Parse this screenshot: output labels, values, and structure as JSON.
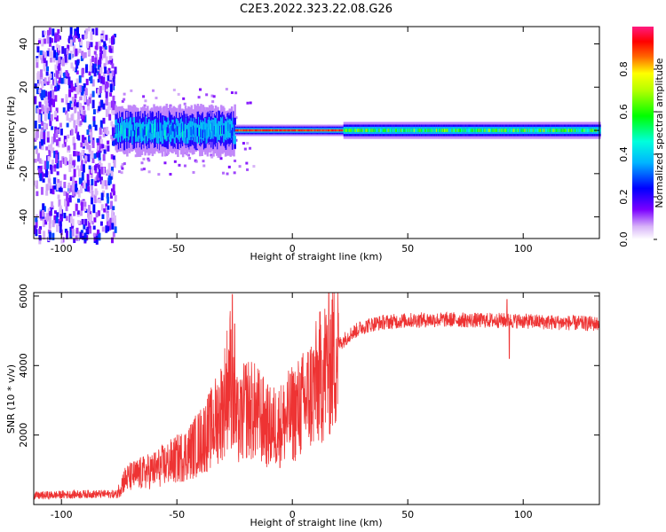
{
  "title": "C2E3.2022.323.22.08.G26",
  "chart_data": [
    {
      "type": "heatmap",
      "xlabel": "Height of straight line (km)",
      "ylabel": "Frequency (Hz)",
      "xlim": [
        -112,
        133
      ],
      "ylim": [
        -50,
        48
      ],
      "xticks": [
        "-100",
        "-50",
        "0",
        "50",
        "100"
      ],
      "xtick_values": [
        -100,
        -50,
        0,
        50,
        100
      ],
      "yticks": [
        "-40",
        "-20",
        "0",
        "20",
        "40"
      ],
      "ytick_values": [
        -40,
        -20,
        0,
        20,
        40
      ],
      "colorbar": {
        "label": "Normalized spectral amplitude",
        "range": [
          0,
          1
        ],
        "ticks": [
          "0.0",
          "0.2",
          "0.4",
          "0.6",
          "0.8"
        ],
        "tick_values": [
          0,
          0.2,
          0.4,
          0.6,
          0.8
        ],
        "colormap": "rainbow (white-violet-blue-cyan-green-yellow-red-pink)"
      },
      "regions": [
        {
          "x_range": [
            -112,
            -77
          ],
          "description": "broadband noise",
          "amplitude": [
            0.05,
            0.3
          ]
        },
        {
          "x_range": [
            -77,
            -25
          ],
          "freq_center": 0,
          "freq_spread": 8,
          "amplitude": [
            0.2,
            0.5
          ]
        },
        {
          "x_range": [
            -25,
            22
          ],
          "freq_center": 0,
          "freq_spread": 2,
          "amplitude": [
            0.85,
            0.95
          ]
        },
        {
          "x_range": [
            22,
            133
          ],
          "freq_center": 0,
          "freq_spread": 3,
          "amplitude": [
            0.4,
            0.7
          ]
        }
      ]
    },
    {
      "type": "line",
      "xlabel": "Height of straight line (km)",
      "ylabel": "SNR (10 * v/v)",
      "xlim": [
        -112,
        133
      ],
      "ylim": [
        0,
        6100
      ],
      "xticks": [
        "-100",
        "-50",
        "0",
        "50",
        "100"
      ],
      "xtick_values": [
        -100,
        -50,
        0,
        50,
        100
      ],
      "yticks": [
        "2000",
        "4000",
        "6000"
      ],
      "ytick_values": [
        2000,
        4000,
        6000
      ],
      "color": "#ee3333",
      "series": [
        {
          "x": [
            -112,
            -100,
            -90,
            -80,
            -76,
            -73,
            -70,
            -65,
            -60,
            -55,
            -50,
            -45,
            -40,
            -35,
            -30,
            -27,
            -25,
            -23,
            -20,
            -15,
            -10,
            -5,
            0,
            5,
            10,
            15,
            20,
            25,
            30,
            35,
            40,
            50,
            60,
            70,
            80,
            90,
            100,
            110,
            120,
            133
          ],
          "y": [
            250,
            280,
            300,
            300,
            300,
            700,
            800,
            900,
            1000,
            1150,
            1300,
            1500,
            1800,
            2200,
            2800,
            3800,
            2500,
            2300,
            2800,
            2600,
            2200,
            2300,
            2600,
            2900,
            3400,
            4000,
            4600,
            4900,
            5100,
            5200,
            5250,
            5300,
            5320,
            5320,
            5300,
            5300,
            5280,
            5250,
            5230,
            5200
          ]
        }
      ],
      "spikes": [
        {
          "x": -26,
          "y": 6050
        },
        {
          "x": -25,
          "y": 5200
        },
        {
          "x": 93,
          "y": 5900
        },
        {
          "x": 94,
          "y": 4200
        }
      ]
    }
  ]
}
